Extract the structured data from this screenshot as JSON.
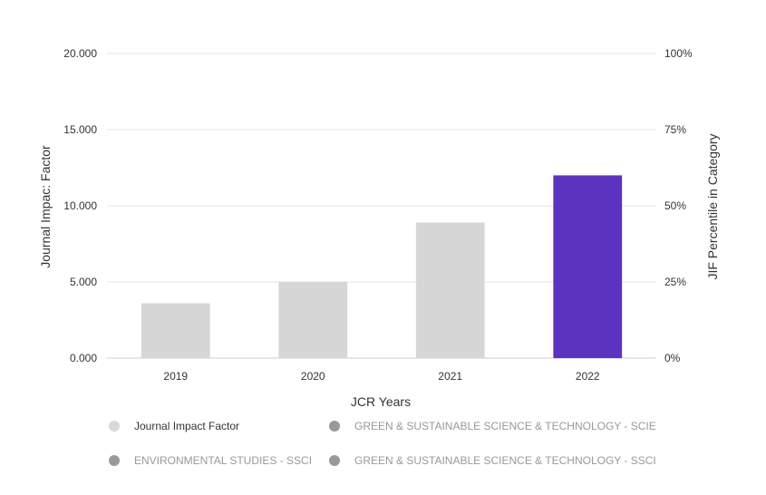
{
  "chart_data": {
    "type": "bar",
    "categories": [
      "2019",
      "2020",
      "2021",
      "2022"
    ],
    "series": [
      {
        "name": "Journal Impact Factor",
        "values": [
          3.6,
          5.0,
          8.9,
          12.0
        ]
      }
    ],
    "bar_colors": [
      "#d6d6d6",
      "#d6d6d6",
      "#d6d6d6",
      "#5c33bf"
    ],
    "xlabel": "JCR Years",
    "ylabel": "Journal Impac: Factor",
    "ylim": [
      0,
      20
    ],
    "yticks": [
      "0.000",
      "5.000",
      "10.000",
      "15.000",
      "20.000"
    ],
    "y2label": "JIF Percentile in Category",
    "y2lim": [
      0,
      100
    ],
    "y2ticks": [
      "0%",
      "25%",
      "50%",
      "75%",
      "100%"
    ],
    "grid": true,
    "legend_position": "bottom",
    "legend": [
      {
        "label": "Journal Impact Factor",
        "color": "#d9d9d9",
        "text_color": "#333333"
      },
      {
        "label": "GREEN & SUSTAINABLE SCIENCE & TECHNOLOGY - SCIE",
        "color": "#999999",
        "text_color": "#999999"
      },
      {
        "label": "ENVIRONMENTAL STUDIES - SSCI",
        "color": "#999999",
        "text_color": "#999999"
      },
      {
        "label": "GREEN & SUSTAINABLE SCIENCE & TECHNOLOGY - SSCI",
        "color": "#999999",
        "text_color": "#999999"
      }
    ]
  }
}
